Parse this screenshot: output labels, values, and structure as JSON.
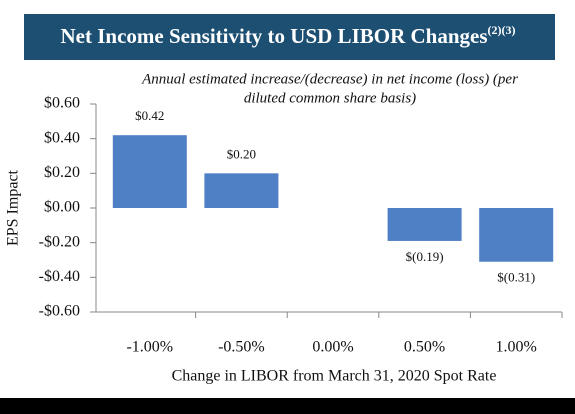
{
  "chart_data": {
    "type": "bar",
    "title": "Net Income Sensitivity to USD LIBOR Changes",
    "title_note": "(2)(3)",
    "subtitle": [
      "Annual estimated increase/(decrease) in net income (loss) (per",
      "diluted common share basis)"
    ],
    "y_label": "EPS Impact",
    "x_label": "Change in LIBOR from March 31, 2020 Spot Rate",
    "categories": [
      "-1.00%",
      "-0.50%",
      "0.00%",
      "0.50%",
      "1.00%"
    ],
    "values": [
      0.42,
      0.2,
      null,
      -0.19,
      -0.31
    ],
    "value_labels": [
      "$0.42",
      "$0.20",
      null,
      "$(0.19)",
      "$(0.31)"
    ],
    "color": "#4f7fc4",
    "ylim": [
      -0.6,
      0.6
    ],
    "yticks": [
      {
        "value": 0.6,
        "label": "$0.60"
      },
      {
        "value": 0.4,
        "label": "$0.40"
      },
      {
        "value": 0.2,
        "label": "$0.20"
      },
      {
        "value": 0,
        "label": "$0.00"
      },
      {
        "value": -0.2,
        "label": "-$0.20"
      },
      {
        "value": -0.4,
        "label": "-$0.40"
      },
      {
        "value": -0.6,
        "label": "-$0.60"
      }
    ]
  }
}
